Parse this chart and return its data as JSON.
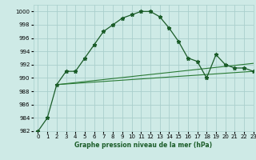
{
  "title": "Graphe pression niveau de la mer (hPa)",
  "background_color": "#ceeae6",
  "grid_color": "#aacfcc",
  "line_color_main": "#1a5c28",
  "line_color_flat1": "#2a7a35",
  "line_color_flat2": "#2a7a35",
  "xlim": [
    -0.5,
    23
  ],
  "ylim": [
    982,
    1001
  ],
  "yticks": [
    982,
    984,
    986,
    988,
    990,
    992,
    994,
    996,
    998,
    1000
  ],
  "xticks": [
    0,
    1,
    2,
    3,
    4,
    5,
    6,
    7,
    8,
    9,
    10,
    11,
    12,
    13,
    14,
    15,
    16,
    17,
    18,
    19,
    20,
    21,
    22,
    23
  ],
  "series1_x": [
    0,
    1,
    2,
    3,
    4,
    5,
    6,
    7,
    8,
    9,
    10,
    11,
    12,
    13,
    14,
    15,
    16,
    17,
    18,
    19,
    20,
    21,
    22,
    23
  ],
  "series1_y": [
    982,
    984,
    989,
    991,
    991,
    993,
    995,
    997,
    998,
    999,
    999.5,
    1000,
    1000,
    999.2,
    997.5,
    995.5,
    993,
    992.5,
    990,
    993.5,
    992,
    991.5,
    991.5,
    991
  ],
  "series2_x": [
    2,
    23
  ],
  "series2_y": [
    989,
    991
  ],
  "series3_x": [
    2,
    23
  ],
  "series3_y": [
    989,
    992.2
  ],
  "title_fontsize": 5.5,
  "tick_fontsize": 5,
  "figwidth": 3.2,
  "figheight": 2.0,
  "dpi": 100
}
